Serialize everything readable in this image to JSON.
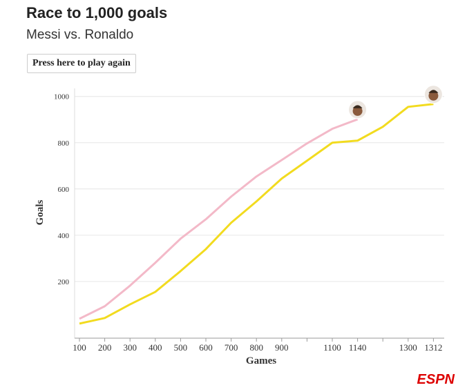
{
  "header": {
    "title": "Race to 1,000 goals",
    "subtitle": "Messi vs. Ronaldo",
    "button": "Press here to play again"
  },
  "chart_data": {
    "type": "line",
    "x_label": "Games",
    "y_label": "Goals",
    "categories": [
      "100",
      "200",
      "300",
      "400",
      "500",
      "600",
      "700",
      "800",
      "900",
      null,
      "1100",
      "1140",
      null,
      "1300",
      "1312"
    ],
    "series": [
      {
        "color": "#f3b9c8",
        "values": [
          39,
          93,
          182,
          281,
          385,
          469,
          567,
          654,
          725,
          797,
          860,
          901,
          null,
          null,
          null
        ]
      },
      {
        "color": "#f2db1f",
        "values": [
          18,
          42,
          101,
          155,
          245,
          340,
          454,
          546,
          645,
          722,
          800,
          809,
          869,
          955,
          967
        ]
      }
    ],
    "ylim": [
      -45,
      1035
    ],
    "yticks": [
      200,
      400,
      600,
      800,
      1000
    ],
    "grid": true
  },
  "footer": {
    "logo": "ESPN"
  }
}
